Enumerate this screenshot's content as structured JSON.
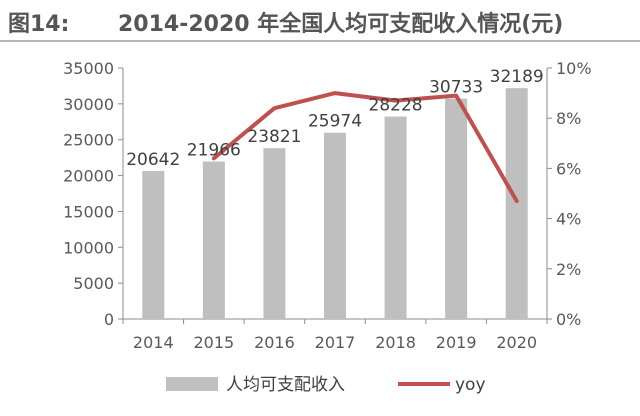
{
  "header": {
    "prefix": "图14:",
    "title": "2014-2020 年全国人均可支配收入情况(元)"
  },
  "chart_data": {
    "type": "bar",
    "title": "2014-2020 年全国人均可支配收入情况(元)",
    "categories": [
      "2014",
      "2015",
      "2016",
      "2017",
      "2018",
      "2019",
      "2020"
    ],
    "series": [
      {
        "name": "人均可支配收入",
        "type": "bar",
        "axis": "left",
        "values": [
          20642,
          21966,
          23821,
          25974,
          28228,
          30733,
          32189
        ],
        "color": "#bfbfbf"
      },
      {
        "name": "yoy",
        "type": "line",
        "axis": "right",
        "values": [
          null,
          6.4,
          8.4,
          9.0,
          8.7,
          8.9,
          4.7
        ],
        "color": "#c0504d"
      }
    ],
    "y_left": {
      "ylim": [
        0,
        35000
      ],
      "ticks": [
        "0",
        "5000",
        "10000",
        "15000",
        "20000",
        "25000",
        "30000",
        "35000"
      ]
    },
    "y_right": {
      "ylim": [
        0,
        10
      ],
      "ticks": [
        "0%",
        "2%",
        "4%",
        "6%",
        "8%",
        "10%"
      ]
    },
    "legend_position": "bottom",
    "grid": false
  }
}
